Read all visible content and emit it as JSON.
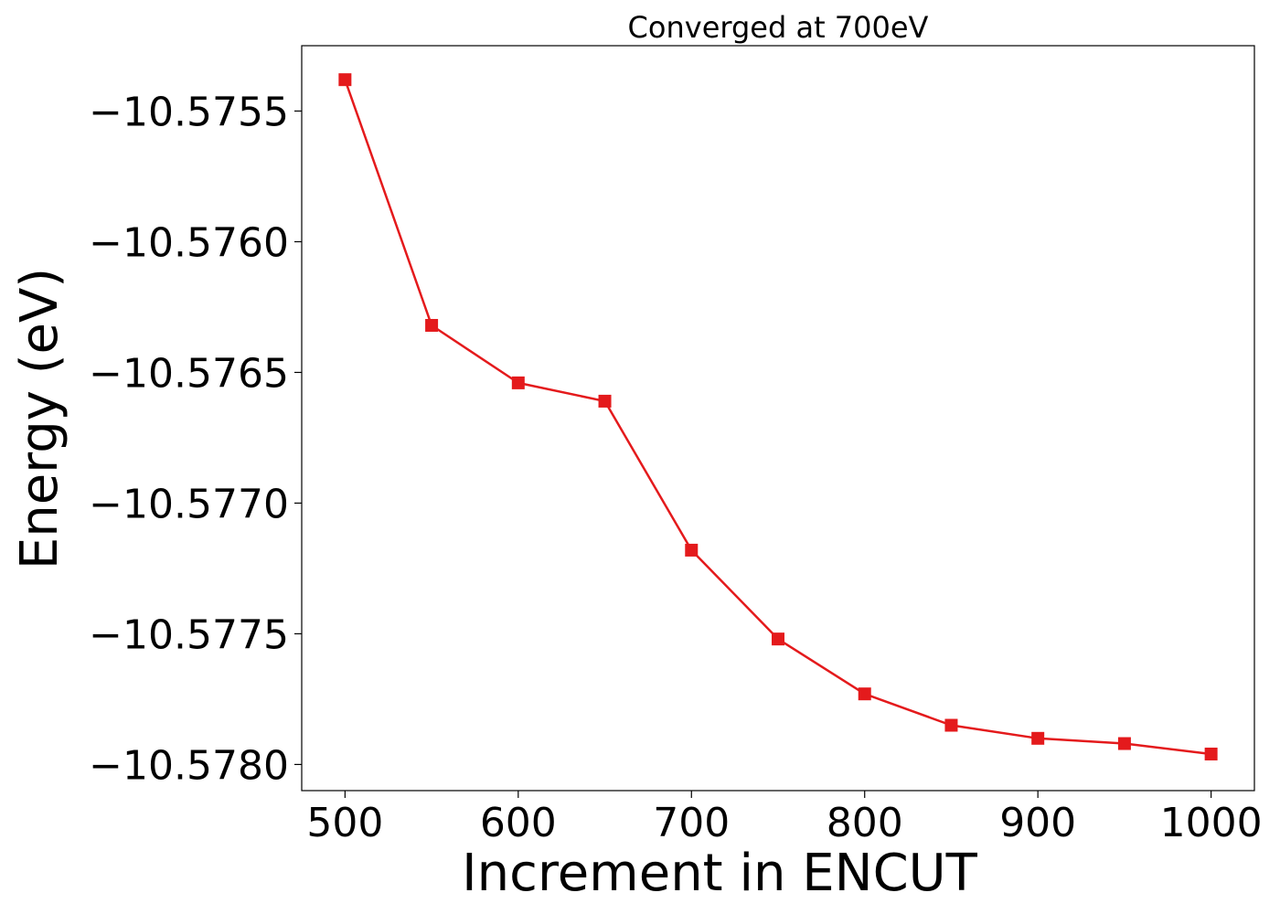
{
  "chart_data": {
    "type": "line",
    "title": "Converged at 700eV",
    "xlabel": "Increment in ENCUT",
    "ylabel": "Energy (eV)",
    "x": [
      500,
      550,
      600,
      650,
      700,
      750,
      800,
      850,
      900,
      950,
      1000
    ],
    "series": [
      {
        "values": [
          -10.57538,
          -10.57632,
          -10.57654,
          -10.57661,
          -10.57718,
          -10.57752,
          -10.57773,
          -10.57785,
          -10.5779,
          -10.57792,
          -10.57796
        ],
        "color": "#e41a1c",
        "marker": "square"
      }
    ],
    "xlim": [
      475,
      1025
    ],
    "ylim": [
      -10.5781,
      -10.57525
    ],
    "xticks": [
      500,
      600,
      700,
      800,
      900,
      1000
    ],
    "xtick_labels": [
      "500",
      "600",
      "700",
      "800",
      "900",
      "1000"
    ],
    "yticks": [
      -10.5755,
      -10.576,
      -10.5765,
      -10.577,
      -10.5775,
      -10.578
    ],
    "ytick_labels": [
      "−10.5755",
      "−10.5760",
      "−10.5765",
      "−10.5770",
      "−10.5775",
      "−10.5780"
    ],
    "grid": false,
    "legend": "none"
  }
}
